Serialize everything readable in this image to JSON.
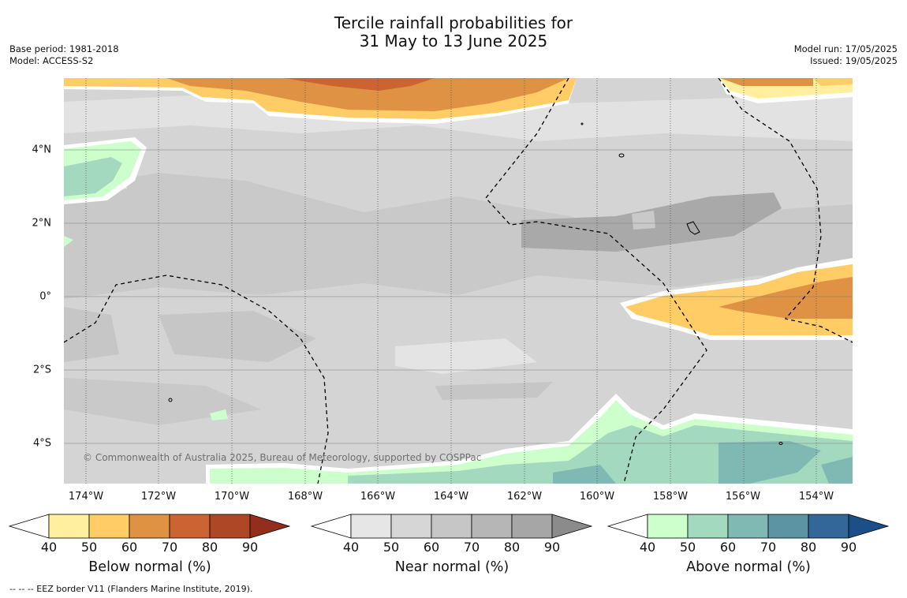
{
  "title_line1": "Tercile rainfall probabilities for",
  "title_line2": "31 May to 13 June 2025",
  "base_period": "Base period: 1981-2018",
  "model": "Model: ACCESS-S2",
  "model_run": "Model run: 17/05/2025",
  "issued": "Issued: 19/05/2025",
  "lat_labels": [
    "4°N",
    "2°N",
    "0°",
    "2°S",
    "4°S"
  ],
  "lon_labels": [
    "174°W",
    "172°W",
    "170°W",
    "168°W",
    "166°W",
    "164°W",
    "162°W",
    "160°W",
    "158°W",
    "156°W",
    "154°W"
  ],
  "copyright": "© Commonwealth of Australia 2025, Bureau of Meteorology, supported by COSPPac",
  "colorbars": [
    {
      "title": "Below normal (%)",
      "ticks": [
        "40",
        "50",
        "60",
        "70",
        "80",
        "90"
      ],
      "colors": [
        "#ffef9e",
        "#ffcc66",
        "#e09244",
        "#cc6333",
        "#ad4726",
        "#932d1c"
      ]
    },
    {
      "title": "Near normal (%)",
      "ticks": [
        "40",
        "50",
        "60",
        "70",
        "80",
        "90"
      ],
      "colors": [
        "#e6e6e6",
        "#d6d6d6",
        "#c6c6c6",
        "#b6b6b6",
        "#a6a6a6",
        "#8b8b8b"
      ]
    },
    {
      "title": "Above normal (%)",
      "ticks": [
        "40",
        "50",
        "60",
        "70",
        "80",
        "90"
      ],
      "colors": [
        "#ccffcc",
        "#a3d9bf",
        "#80b8b3",
        "#5c94a4",
        "#336699",
        "#1a4f87"
      ]
    }
  ],
  "footnote": "--  --  -- EEZ border V11 (Flanders Marine Institute, 2019)."
}
